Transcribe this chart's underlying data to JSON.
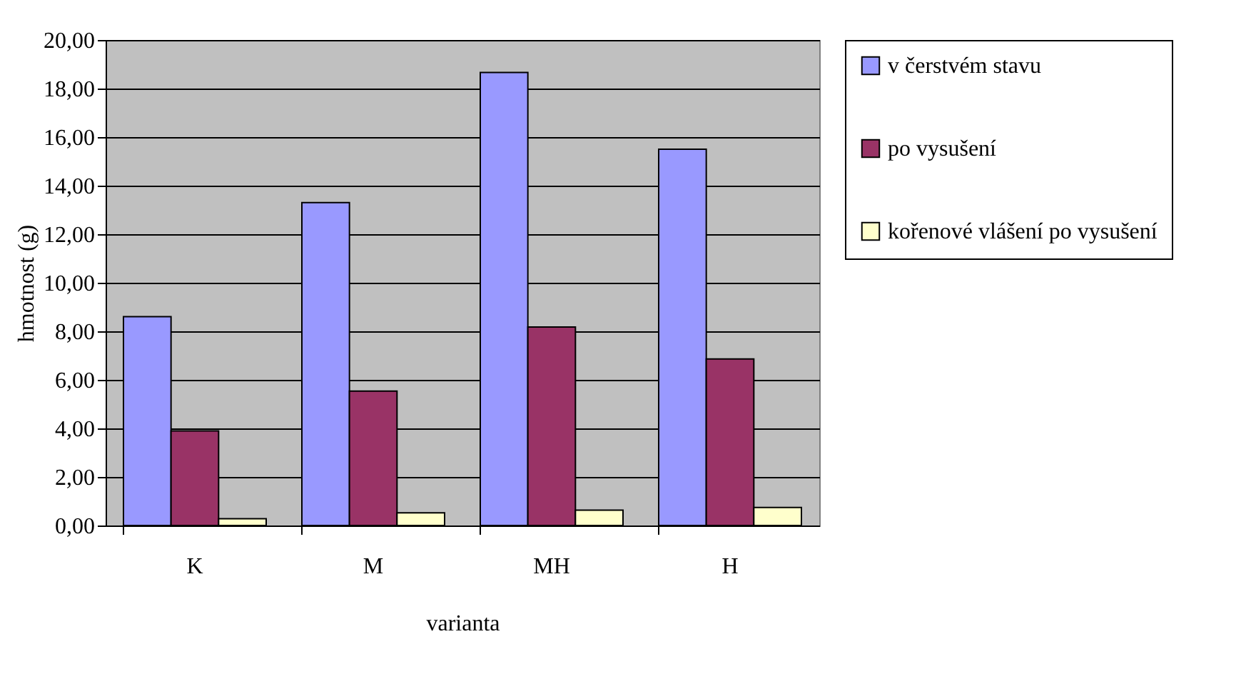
{
  "chart_data": {
    "type": "bar",
    "xlabel": "varianta",
    "ylabel": "hmotnost (g)",
    "categories": [
      "K",
      "M",
      "MH",
      "H"
    ],
    "series": [
      {
        "name": "v čerstvém stavu",
        "color": "#9999ff",
        "values": [
          8.6,
          13.3,
          18.66,
          15.5
        ]
      },
      {
        "name": "po vysušení",
        "color": "#993366",
        "values": [
          3.9,
          5.54,
          8.18,
          6.86
        ]
      },
      {
        "name": "kořenové vlášení po vysušení",
        "color": "#ffffcc",
        "values": [
          0.28,
          0.52,
          0.63,
          0.74
        ]
      }
    ],
    "ylim": [
      0,
      20
    ],
    "yticks": [
      {
        "value": 0,
        "label": "0,00"
      },
      {
        "value": 2,
        "label": "2,00"
      },
      {
        "value": 4,
        "label": "4,00"
      },
      {
        "value": 6,
        "label": "6,00"
      },
      {
        "value": 8,
        "label": "8,00"
      },
      {
        "value": 10,
        "label": "10,00"
      },
      {
        "value": 12,
        "label": "12,00"
      },
      {
        "value": 14,
        "label": "14,00"
      },
      {
        "value": 16,
        "label": "16,00"
      },
      {
        "value": 18,
        "label": "18,00"
      },
      {
        "value": 20,
        "label": "20,00"
      }
    ],
    "grid": "y",
    "legend": "right"
  }
}
